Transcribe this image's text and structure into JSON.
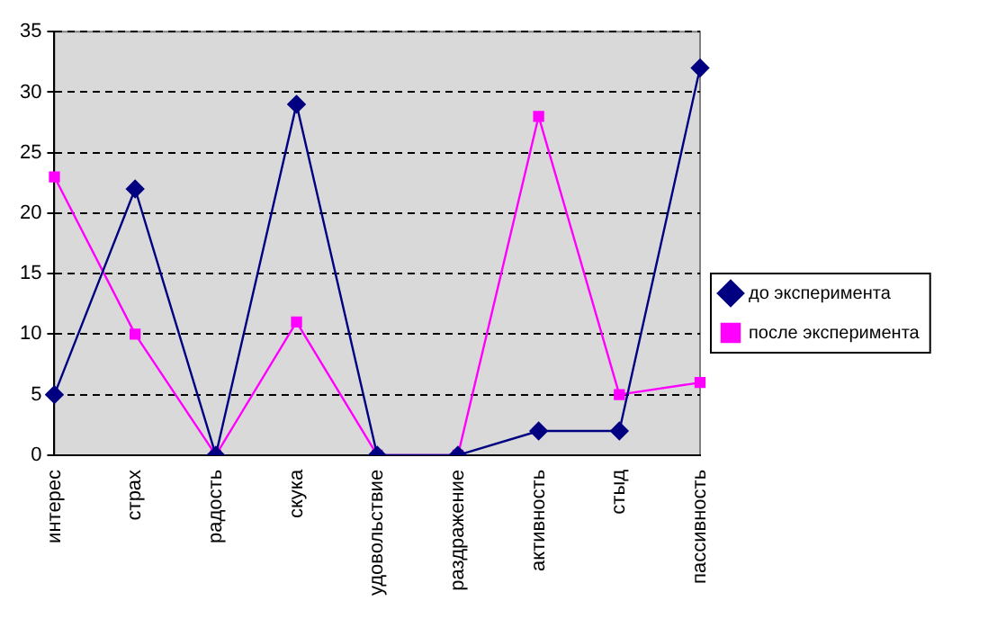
{
  "chart_data": {
    "type": "line",
    "categories": [
      "интерес",
      "страх",
      "радость",
      "скука",
      "удовольствие",
      "раздражение",
      "активность",
      "стыд",
      "пассивность"
    ],
    "series": [
      {
        "name": "до эксперимента",
        "color": "#000080",
        "marker": "diamond",
        "values": [
          5,
          22,
          0,
          29,
          0,
          0,
          2,
          2,
          32
        ]
      },
      {
        "name": "после эксперимента",
        "color": "#ff00ff",
        "marker": "square",
        "values": [
          23,
          10,
          0,
          11,
          0,
          0,
          28,
          5,
          6
        ]
      }
    ],
    "ylim": [
      0,
      35
    ],
    "yticks": [
      0,
      5,
      10,
      15,
      20,
      25,
      30,
      35
    ],
    "grid": "y",
    "legend": "right",
    "line_style": "solid"
  }
}
